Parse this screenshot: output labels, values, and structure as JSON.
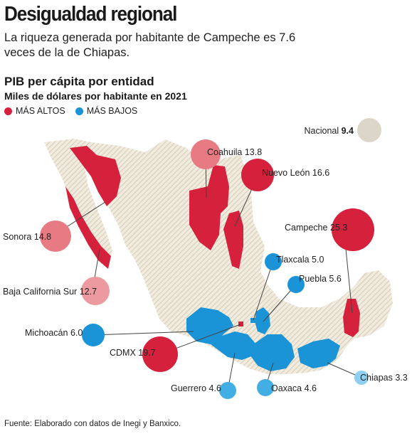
{
  "header": {
    "title": "Desigualdad regional",
    "subtitle": "La riqueza generada por habitante de Campeche es 7.6 veces de la de Chiapas."
  },
  "section": {
    "title": "PIB per cápita por entidad",
    "subtitle": "Miles de dólares por habitante en 2021"
  },
  "legend": {
    "high_label": "MÁS ALTOS",
    "low_label": "MÁS BAJOS",
    "high_color": "#d6213d",
    "high_light_color": "#e87a83",
    "low_color": "#1a94d6",
    "low_light_color": "#8fd0f0",
    "neutral_color": "#dcd6c8"
  },
  "national": {
    "name": "Nacional",
    "value": "9.4"
  },
  "states": [
    {
      "id": "coahuila",
      "name": "Coahuila",
      "value": "13.8",
      "group": "high"
    },
    {
      "id": "nuevo-leon",
      "name": "Nuevo León",
      "value": "16.6",
      "group": "high"
    },
    {
      "id": "campeche",
      "name": "Campeche",
      "value": "25.3",
      "group": "high"
    },
    {
      "id": "sonora",
      "name": "Sonora",
      "value": "14.8",
      "group": "high"
    },
    {
      "id": "bcs",
      "name": "Baja California Sur",
      "value": "12.7",
      "group": "high"
    },
    {
      "id": "tlaxcala",
      "name": "Tlaxcala",
      "value": "5.0",
      "group": "low"
    },
    {
      "id": "puebla",
      "name": "Puebla",
      "value": "5.6",
      "group": "low"
    },
    {
      "id": "michoacan",
      "name": "Michoacán",
      "value": "6.0",
      "group": "low"
    },
    {
      "id": "cdmx",
      "name": "CDMX",
      "value": "19.7",
      "group": "high"
    },
    {
      "id": "guerrero",
      "name": "Guerrero",
      "value": "4.6",
      "group": "low"
    },
    {
      "id": "oaxaca",
      "name": "Oaxaca",
      "value": "4.6",
      "group": "low"
    },
    {
      "id": "chiapas",
      "name": "Chiapas",
      "value": "3.3",
      "group": "low"
    }
  ],
  "footer": "Fuente: Elaborado con datos de Inegi y Banxico."
}
